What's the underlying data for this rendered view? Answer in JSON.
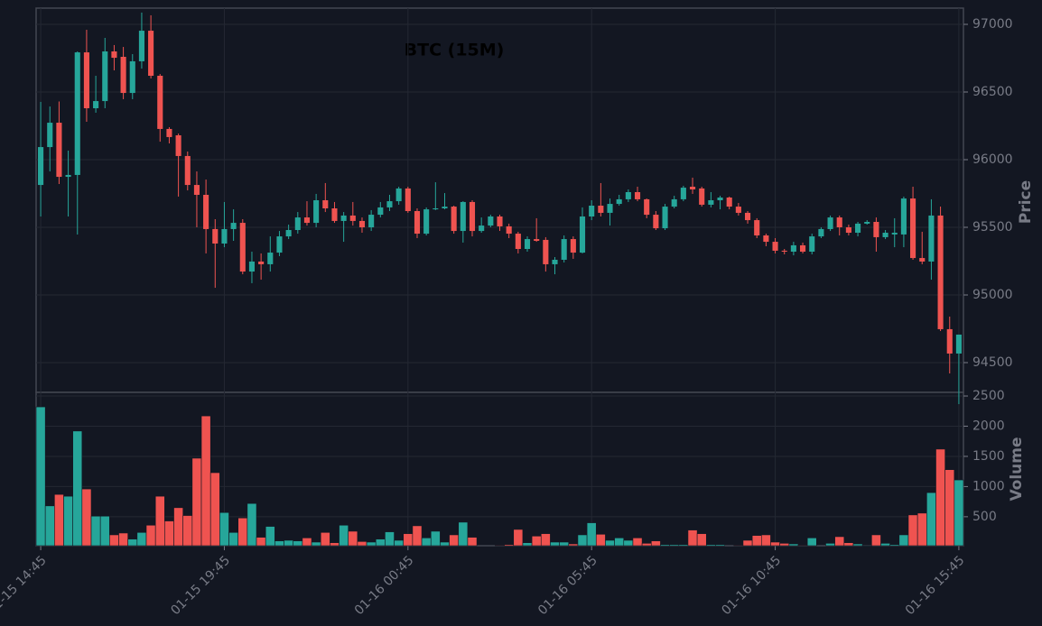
{
  "chart_data": {
    "type": "candlestick",
    "title": "BTC (15M)",
    "ylabel": "Price",
    "volume_label": "Volume",
    "up_color": "#26a69a",
    "down_color": "#ef5350",
    "grid": true,
    "categories": [
      "01-15 14:45",
      null,
      null,
      null,
      null,
      null,
      null,
      null,
      null,
      null,
      null,
      null,
      null,
      null,
      null,
      null,
      null,
      null,
      null,
      null,
      "01-15 19:45",
      null,
      null,
      null,
      null,
      null,
      null,
      null,
      null,
      null,
      null,
      null,
      null,
      null,
      null,
      null,
      null,
      null,
      null,
      null,
      "01-16 00:45",
      null,
      null,
      null,
      null,
      null,
      null,
      null,
      null,
      null,
      null,
      null,
      null,
      null,
      null,
      null,
      null,
      null,
      null,
      null,
      "01-16 05:45",
      null,
      null,
      null,
      null,
      null,
      null,
      null,
      null,
      null,
      null,
      null,
      null,
      null,
      null,
      null,
      null,
      null,
      null,
      null,
      "01-16 10:45",
      null,
      null,
      null,
      null,
      null,
      null,
      null,
      null,
      null,
      null,
      null,
      null,
      null,
      null,
      null,
      null,
      null,
      null,
      null,
      "01-16 15:45"
    ],
    "open": [
      95813,
      96093,
      96273,
      95873,
      95887,
      96793,
      96380,
      96433,
      96800,
      96760,
      96493,
      96727,
      96953,
      96620,
      96227,
      96180,
      96027,
      95813,
      95740,
      95487,
      95380,
      95487,
      95533,
      95173,
      95247,
      95227,
      95313,
      95433,
      95480,
      95573,
      95533,
      95700,
      95640,
      95547,
      95587,
      95547,
      95500,
      95593,
      95647,
      95693,
      95787,
      95620,
      95453,
      95633,
      95640,
      95653,
      95473,
      95687,
      95473,
      95513,
      95580,
      95507,
      95453,
      95340,
      95413,
      95407,
      95227,
      95260,
      95413,
      95313,
      95580,
      95660,
      95607,
      95673,
      95707,
      95760,
      95707,
      95593,
      95493,
      95653,
      95707,
      95800,
      95787,
      95667,
      95700,
      95720,
      95653,
      95607,
      95553,
      95440,
      95393,
      95327,
      95320,
      95367,
      95320,
      95433,
      95487,
      95573,
      95500,
      95460,
      95527,
      95540,
      95427,
      95447,
      95447,
      95713,
      95273,
      95247,
      95587,
      94747,
      94567
    ],
    "high": [
      96427,
      96393,
      96430,
      96067,
      96800,
      96960,
      96620,
      96900,
      96847,
      96833,
      96780,
      97087,
      97067,
      96633,
      96240,
      96193,
      96060,
      95913,
      95853,
      95560,
      95687,
      95633,
      95560,
      95320,
      95307,
      95433,
      95473,
      95520,
      95613,
      95693,
      95747,
      95827,
      95687,
      95613,
      95687,
      95573,
      95627,
      95687,
      95740,
      95800,
      95800,
      95640,
      95647,
      95833,
      95753,
      95660,
      95693,
      95700,
      95573,
      95593,
      95593,
      95527,
      95467,
      95433,
      95567,
      95427,
      95280,
      95440,
      95433,
      95647,
      95700,
      95827,
      95713,
      95740,
      95780,
      95800,
      95713,
      95620,
      95673,
      95733,
      95807,
      95867,
      95800,
      95760,
      95733,
      95727,
      95680,
      95620,
      95567,
      95453,
      95420,
      95340,
      95393,
      95387,
      95453,
      95500,
      95587,
      95587,
      95520,
      95540,
      95553,
      95573,
      95480,
      95567,
      95727,
      95800,
      95467,
      95707,
      95653,
      94840,
      94707
    ],
    "low": [
      95580,
      95913,
      95820,
      95580,
      95447,
      96280,
      96347,
      96380,
      96660,
      96447,
      96447,
      96673,
      96600,
      96133,
      96120,
      95727,
      95773,
      95500,
      95307,
      95053,
      95353,
      95400,
      95153,
      95087,
      95113,
      95173,
      95287,
      95413,
      95453,
      95513,
      95500,
      95613,
      95533,
      95393,
      95513,
      95460,
      95473,
      95573,
      95620,
      95667,
      95607,
      95420,
      95440,
      95627,
      95633,
      95453,
      95387,
      95433,
      95460,
      95500,
      95473,
      95420,
      95307,
      95320,
      95393,
      95173,
      95153,
      95240,
      95267,
      95307,
      95553,
      95580,
      95513,
      95660,
      95687,
      95693,
      95567,
      95480,
      95480,
      95640,
      95693,
      95747,
      95653,
      95647,
      95633,
      95633,
      95587,
      95527,
      95420,
      95360,
      95307,
      95300,
      95293,
      95307,
      95300,
      95420,
      95473,
      95440,
      95440,
      95433,
      95520,
      95320,
      95413,
      95353,
      95353,
      95260,
      95227,
      95113,
      94733,
      94420,
      94193
    ],
    "close": [
      96093,
      96273,
      95873,
      95887,
      96793,
      96380,
      96433,
      96800,
      96753,
      96493,
      96727,
      96953,
      96620,
      96227,
      96167,
      96027,
      95813,
      95740,
      95487,
      95380,
      95487,
      95533,
      95173,
      95247,
      95227,
      95313,
      95433,
      95480,
      95573,
      95533,
      95700,
      95640,
      95547,
      95587,
      95547,
      95500,
      95593,
      95647,
      95693,
      95787,
      95620,
      95453,
      95633,
      95640,
      95653,
      95473,
      95687,
      95473,
      95513,
      95580,
      95507,
      95453,
      95340,
      95413,
      95400,
      95227,
      95260,
      95413,
      95313,
      95580,
      95660,
      95607,
      95673,
      95707,
      95760,
      95707,
      95593,
      95493,
      95653,
      95707,
      95793,
      95780,
      95667,
      95700,
      95720,
      95653,
      95607,
      95553,
      95440,
      95393,
      95327,
      95320,
      95367,
      95320,
      95433,
      95487,
      95573,
      95500,
      95460,
      95527,
      95540,
      95427,
      95460,
      95460,
      95713,
      95273,
      95247,
      95587,
      94747,
      94567,
      94707
    ],
    "volume": [
      2320,
      680,
      870,
      840,
      1920,
      960,
      510,
      510,
      200,
      230,
      130,
      240,
      360,
      840,
      430,
      650,
      520,
      1470,
      2170,
      1230,
      570,
      240,
      480,
      720,
      160,
      340,
      100,
      110,
      100,
      150,
      80,
      240,
      70,
      360,
      260,
      90,
      80,
      130,
      250,
      110,
      220,
      350,
      150,
      260,
      80,
      200,
      410,
      160,
      20,
      20,
      30,
      40,
      290,
      70,
      180,
      220,
      80,
      80,
      50,
      200,
      400,
      210,
      110,
      150,
      110,
      150,
      60,
      100,
      40,
      40,
      40,
      280,
      220,
      40,
      40,
      20,
      30,
      110,
      190,
      200,
      80,
      60,
      50,
      30,
      150,
      20,
      60,
      170,
      70,
      50,
      10,
      200,
      60,
      40,
      200,
      530,
      560,
      900,
      1620,
      1280,
      1110
    ],
    "ylim": [
      94280,
      97120
    ],
    "yticks": [
      94500,
      95000,
      95500,
      96000,
      96500,
      97000
    ],
    "volume_ylim": [
      20,
      2560
    ],
    "volume_yticks": [
      500,
      1000,
      1500,
      2000,
      2500
    ]
  }
}
